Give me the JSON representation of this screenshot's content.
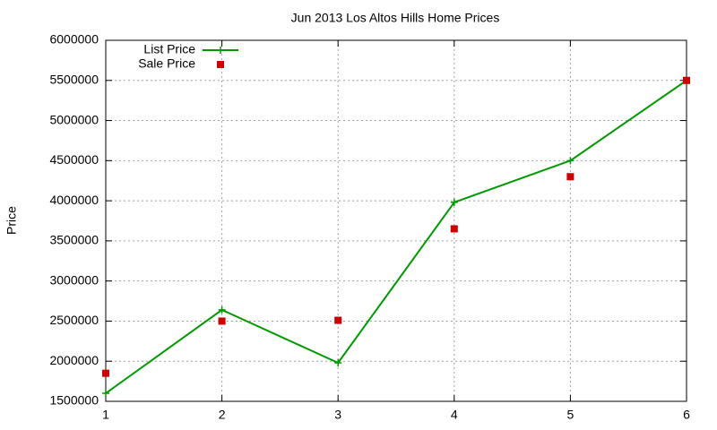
{
  "chart_data": {
    "type": "line",
    "title": "Jun 2013 Los Altos Hills Home Prices",
    "y_label": "Price",
    "x": [
      1,
      2,
      3,
      4,
      5,
      6
    ],
    "xlim": [
      1,
      6
    ],
    "xticks": [
      1,
      2,
      3,
      4,
      5,
      6
    ],
    "ylim": [
      1500000,
      6000000
    ],
    "yticks": [
      1500000,
      2000000,
      2500000,
      3000000,
      3500000,
      4000000,
      4500000,
      5000000,
      5500000,
      6000000
    ],
    "grid": true,
    "legend": "top-left",
    "series": [
      {
        "name": "List Price",
        "color": "#009900",
        "mode": "lines+points",
        "marker": "plus",
        "values": [
          1600000,
          2640000,
          1980000,
          3980000,
          4500000,
          5500000
        ]
      },
      {
        "name": "Sale Price",
        "color": "#cc0000",
        "mode": "points",
        "marker": "square",
        "values": [
          1850000,
          2500000,
          2510000,
          3650000,
          4300000,
          5500000
        ]
      }
    ]
  }
}
